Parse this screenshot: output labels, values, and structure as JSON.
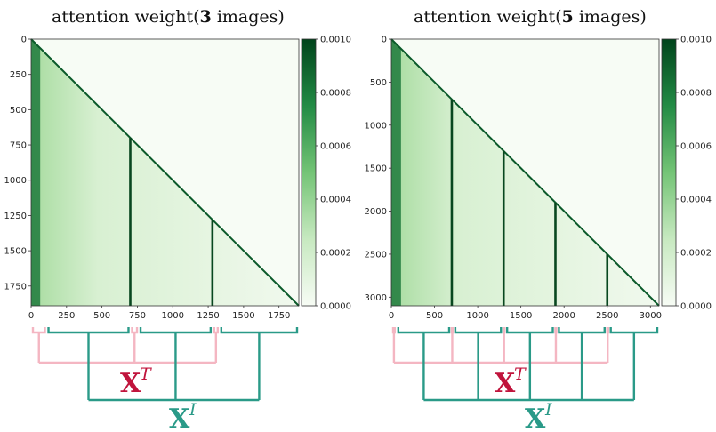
{
  "colors": {
    "heat_low": "#f7fcf5",
    "heat_high": "#00441b",
    "text_bracket": "#f4b6c2",
    "image_bracket": "#2a9a88",
    "xt_label": "#c0143c",
    "xi_label": "#2a9a88"
  },
  "chart_data": [
    {
      "type": "heatmap",
      "title_prefix": "attention weight(",
      "title_count": "3",
      "title_suffix": " images)",
      "x_range": [
        0,
        1890
      ],
      "y_range": [
        0,
        1890
      ],
      "x_ticks": [
        0,
        250,
        500,
        750,
        1000,
        1250,
        1500,
        1750
      ],
      "x_tick_labels": [
        "0",
        "250",
        "500",
        "750",
        "1000",
        "1250",
        "1500",
        "1750"
      ],
      "y_ticks": [
        0,
        250,
        500,
        750,
        1000,
        1250,
        1500,
        1750
      ],
      "y_tick_labels": [
        "0",
        "250",
        "500",
        "750",
        "1000",
        "1250",
        "1500",
        "1750"
      ],
      "colorbar_ticks": [
        0.0,
        0.0002,
        0.0004,
        0.0006,
        0.0008,
        0.001
      ],
      "colorbar_labels": [
        "0.0000",
        "0.0002",
        "0.0004",
        "0.0006",
        "0.0008",
        "0.0010"
      ],
      "mask": "lower-triangular",
      "dark_columns": [
        40,
        700,
        1280
      ],
      "text_segments": [
        [
          0,
          110
        ],
        [
          700,
          760
        ],
        [
          1280,
          1330
        ]
      ],
      "image_segments": [
        [
          110,
          700
        ],
        [
          760,
          1280
        ],
        [
          1330,
          1890
        ]
      ]
    },
    {
      "type": "heatmap",
      "title_prefix": "attention weight(",
      "title_count": "5",
      "title_suffix": " images)",
      "x_range": [
        0,
        3100
      ],
      "y_range": [
        0,
        3100
      ],
      "x_ticks": [
        0,
        500,
        1000,
        1500,
        2000,
        2500,
        3000
      ],
      "x_tick_labels": [
        "0",
        "500",
        "1000",
        "1500",
        "2000",
        "2500",
        "3000"
      ],
      "y_ticks": [
        0,
        500,
        1000,
        1500,
        2000,
        2500,
        3000
      ],
      "y_tick_labels": [
        "0",
        "500",
        "1000",
        "1500",
        "2000",
        "2500",
        "3000"
      ],
      "colorbar_ticks": [
        0.0,
        0.0002,
        0.0004,
        0.0006,
        0.0008,
        0.001
      ],
      "colorbar_labels": [
        "0.0000",
        "0.0002",
        "0.0004",
        "0.0006",
        "0.0008",
        "0.0010"
      ],
      "mask": "lower-triangular",
      "dark_columns": [
        70,
        700,
        1300,
        1900,
        2500
      ],
      "text_segments": [
        [
          0,
          60
        ],
        [
          690,
          720
        ],
        [
          1290,
          1320
        ],
        [
          1890,
          1920
        ],
        [
          2490,
          2520
        ]
      ],
      "image_segments": [
        [
          60,
          690
        ],
        [
          720,
          1290
        ],
        [
          1320,
          1890
        ],
        [
          1920,
          2490
        ],
        [
          2520,
          3100
        ]
      ]
    }
  ],
  "annotations": {
    "xt_base": "X",
    "xt_sup": "T",
    "xi_base": "X",
    "xi_sup": "I"
  }
}
